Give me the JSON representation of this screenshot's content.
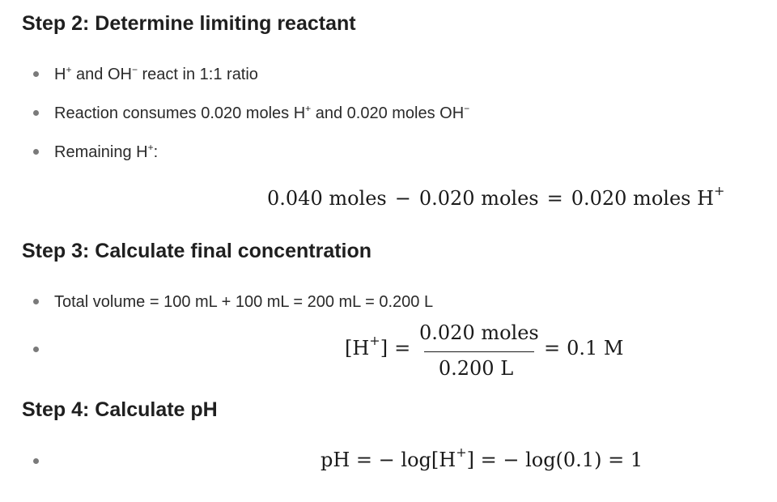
{
  "sections": [
    {
      "title": "Step 2: Determine limiting reactant",
      "bullets": [
        {
          "pre": "H",
          "sup1": "+",
          "mid": " and OH",
          "sup2": "−",
          "post": " react in 1:1 ratio"
        },
        {
          "pre": "Reaction consumes 0.020 moles H",
          "sup1": "+",
          "mid": " and 0.020 moles OH",
          "sup2": "−",
          "post": ""
        },
        {
          "pre": "Remaining H",
          "sup1": "+",
          "mid": ":",
          "sup2": "",
          "post": ""
        }
      ],
      "equation": {
        "a": "0.040 moles",
        "op1": "−",
        "b": "0.020 moles",
        "op2": "=",
        "c": "0.020 moles H",
        "c_sup": "+"
      }
    },
    {
      "title": "Step 3: Calculate final concentration",
      "bullet_text": "Total volume = 100 mL + 100 mL = 200 mL = 0.200 L",
      "equation": {
        "lhs": "[H",
        "lhs_sup": "+",
        "lhs_close": "]",
        "eq": "=",
        "numerator": "0.020 moles",
        "denominator": "0.200 L",
        "eq2": "=",
        "result": "0.1 M"
      }
    },
    {
      "title": "Step 4: Calculate pH",
      "equation": {
        "p1": "pH = − log[H",
        "sup": "+",
        "p2": "] = − log(0.1) = 1"
      }
    }
  ],
  "colors": {
    "text": "#1f1f1f",
    "bullet": "#7a7a7a",
    "background": "#ffffff"
  }
}
